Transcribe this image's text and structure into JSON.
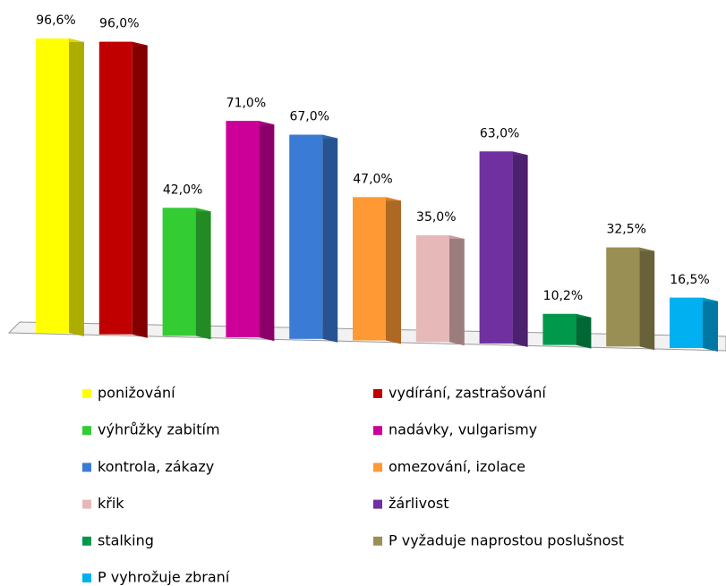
{
  "chart_data": {
    "type": "bar",
    "categories": [
      "ponižování",
      "vydírání, zastrašování",
      "výhrůžky zabitím",
      "nadávky, vulgarismy",
      "kontrola, zákazy",
      "omezování, izolace",
      "křik",
      "žárlivost",
      "stalking",
      "P vyžaduje naprostou poslušnost",
      "P vyhrožuje zbraní"
    ],
    "values": [
      96.6,
      96.0,
      42.0,
      71.0,
      67.0,
      47.0,
      35.0,
      63.0,
      10.2,
      32.5,
      16.5
    ],
    "value_labels": [
      "96,6%",
      "96,0%",
      "42,0%",
      "71,0%",
      "67,0%",
      "47,0%",
      "35,0%",
      "63,0%",
      "10,2%",
      "32,5%",
      "16,5%"
    ],
    "colors": [
      "#ffff00",
      "#c00000",
      "#33cc33",
      "#cc0099",
      "#3a7bd5",
      "#ff9933",
      "#e6b8b8",
      "#7030a0",
      "#00994c",
      "#998f55",
      "#00b0f0"
    ]
  }
}
